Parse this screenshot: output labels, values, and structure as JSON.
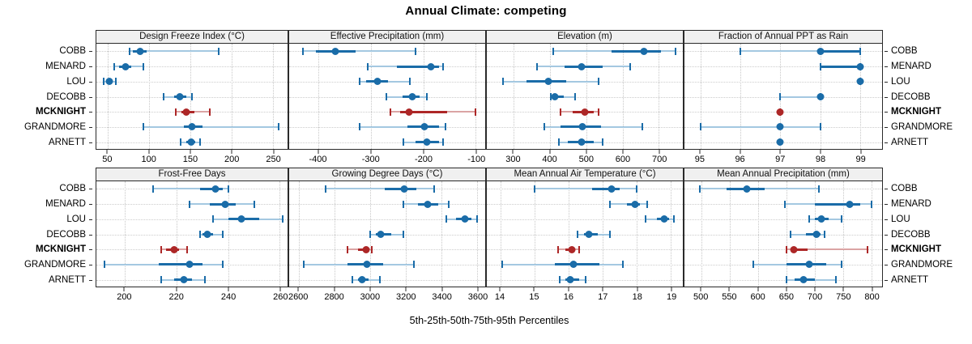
{
  "title": "Annual Climate: competing",
  "footer": "5th-25th-50th-75th-95th Percentiles",
  "stations": [
    "COBB",
    "MENARD",
    "LOU",
    "DECOBB",
    "MCKNIGHT",
    "GRANDMORE",
    "ARNETT"
  ],
  "highlight_station": "MCKNIGHT",
  "colors": {
    "series_blue": "#1a6ca8",
    "series_blue_light": "#a4c8e1",
    "series_red": "#ad2727",
    "series_red_light": "#dba4a4",
    "grid": "#c7c7c7",
    "header_bg": "#f0f0f0",
    "border": "#2a2a2a"
  },
  "chart_data": {
    "type": "dotplot-percentiles",
    "title": "Annual Climate: competing",
    "xlabel": "5th-25th-50th-75th-95th Percentiles",
    "percentile_labels": [
      "5th",
      "25th",
      "50th",
      "75th",
      "95th"
    ],
    "stations": [
      "COBB",
      "MENARD",
      "LOU",
      "DECOBB",
      "MCKNIGHT",
      "GRANDMORE",
      "ARNETT"
    ],
    "legend_position": "none",
    "grid": "dotted",
    "panels": [
      {
        "title": "Design Freeze Index (°C)",
        "ticks": [
          50,
          100,
          150,
          200,
          250
        ],
        "xlim": [
          36,
          268
        ],
        "series": [
          [
            76,
            80,
            89,
            97,
            184
          ],
          [
            58,
            64,
            71,
            78,
            93
          ],
          [
            45,
            48,
            52,
            56,
            60
          ],
          [
            118,
            130,
            137,
            145,
            152
          ],
          [
            132,
            139,
            145,
            155,
            174
          ],
          [
            93,
            142,
            152,
            165,
            257
          ],
          [
            138,
            145,
            151,
            156,
            162
          ]
        ]
      },
      {
        "title": "Effective Precipitation (mm)",
        "ticks": [
          -400,
          -300,
          -200,
          -100
        ],
        "xlim": [
          -456,
          -82
        ],
        "series": [
          [
            -430,
            -405,
            -368,
            -330,
            -215
          ],
          [
            -306,
            -250,
            -186,
            -170,
            -162
          ],
          [
            -321,
            -309,
            -288,
            -268,
            -226
          ],
          [
            -270,
            -240,
            -221,
            -207,
            -194
          ],
          [
            -263,
            -245,
            -228,
            -155,
            -100
          ],
          [
            -322,
            -230,
            -198,
            -170,
            -158
          ],
          [
            -238,
            -215,
            -193,
            -170,
            -162
          ]
        ]
      },
      {
        "title": "Elevation (m)",
        "ticks": [
          300,
          400,
          500,
          600,
          700
        ],
        "xlim": [
          226,
          766
        ],
        "series": [
          [
            410,
            570,
            660,
            705,
            745
          ],
          [
            365,
            440,
            488,
            545,
            620
          ],
          [
            270,
            335,
            395,
            445,
            535
          ],
          [
            403,
            408,
            413,
            437,
            470
          ],
          [
            428,
            462,
            495,
            520,
            535
          ],
          [
            385,
            430,
            490,
            540,
            655
          ],
          [
            425,
            450,
            487,
            520,
            545
          ]
        ]
      },
      {
        "title": "Fraction of Annual PPT as Rain",
        "ticks": [
          95,
          96,
          97,
          98,
          99
        ],
        "xlim": [
          94.6,
          99.55
        ],
        "series": [
          [
            96,
            98,
            98,
            99,
            99
          ],
          [
            98,
            98,
            99,
            99,
            99
          ],
          [
            99,
            99,
            99,
            99,
            99
          ],
          [
            97,
            98,
            98,
            98,
            98
          ],
          [
            97,
            97,
            97,
            97,
            97
          ],
          [
            95,
            97,
            97,
            97,
            98
          ],
          [
            97,
            97,
            97,
            97,
            97
          ]
        ]
      },
      {
        "title": "Frost-Free Days",
        "ticks": [
          200,
          220,
          240,
          260
        ],
        "xlim": [
          189,
          263
        ],
        "series": [
          [
            211,
            229,
            235,
            238,
            240
          ],
          [
            225,
            233,
            239,
            243,
            250
          ],
          [
            234,
            240,
            245,
            252,
            261
          ],
          [
            229,
            230,
            232,
            234,
            238
          ],
          [
            214,
            216,
            219,
            221,
            224
          ],
          [
            192,
            213,
            225,
            230,
            238
          ],
          [
            214,
            219,
            223,
            226,
            231
          ]
        ]
      },
      {
        "title": "Growing Degree Days (°C)",
        "ticks": [
          2600,
          2800,
          3000,
          3200,
          3400,
          3600
        ],
        "xlim": [
          2545,
          3645
        ],
        "series": [
          [
            2750,
            3080,
            3190,
            3260,
            3360
          ],
          [
            3185,
            3270,
            3320,
            3380,
            3440
          ],
          [
            3425,
            3480,
            3530,
            3570,
            3600
          ],
          [
            3000,
            3030,
            3060,
            3120,
            3185
          ],
          [
            2870,
            2930,
            2975,
            2990,
            3010
          ],
          [
            2625,
            2870,
            2980,
            3070,
            3245
          ],
          [
            2900,
            2930,
            2955,
            2990,
            3055
          ]
        ]
      },
      {
        "title": "Mean Annual Air Temperature (°C)",
        "ticks": [
          14,
          15,
          16,
          17,
          18,
          19
        ],
        "xlim": [
          13.6,
          19.35
        ],
        "series": [
          [
            15.0,
            16.7,
            17.25,
            17.5,
            18.0
          ],
          [
            17.2,
            17.7,
            17.95,
            18.1,
            18.3
          ],
          [
            18.25,
            18.6,
            18.8,
            18.95,
            19.1
          ],
          [
            16.25,
            16.45,
            16.6,
            16.85,
            17.2
          ],
          [
            15.7,
            15.9,
            16.1,
            16.2,
            16.3
          ],
          [
            14.05,
            15.6,
            16.15,
            16.9,
            17.6
          ],
          [
            15.75,
            15.9,
            16.05,
            16.3,
            16.5
          ]
        ]
      },
      {
        "title": "Mean Annual Precipitation (mm)",
        "ticks": [
          500,
          550,
          600,
          650,
          700,
          750,
          800
        ],
        "xlim": [
          470,
          819
        ],
        "series": [
          [
            497,
            545,
            580,
            612,
            707
          ],
          [
            647,
            700,
            762,
            780,
            800
          ],
          [
            690,
            700,
            712,
            725,
            747
          ],
          [
            657,
            685,
            703,
            710,
            717
          ],
          [
            650,
            657,
            663,
            688,
            793
          ],
          [
            592,
            650,
            690,
            720,
            748
          ],
          [
            650,
            665,
            680,
            700,
            737
          ]
        ]
      }
    ]
  }
}
